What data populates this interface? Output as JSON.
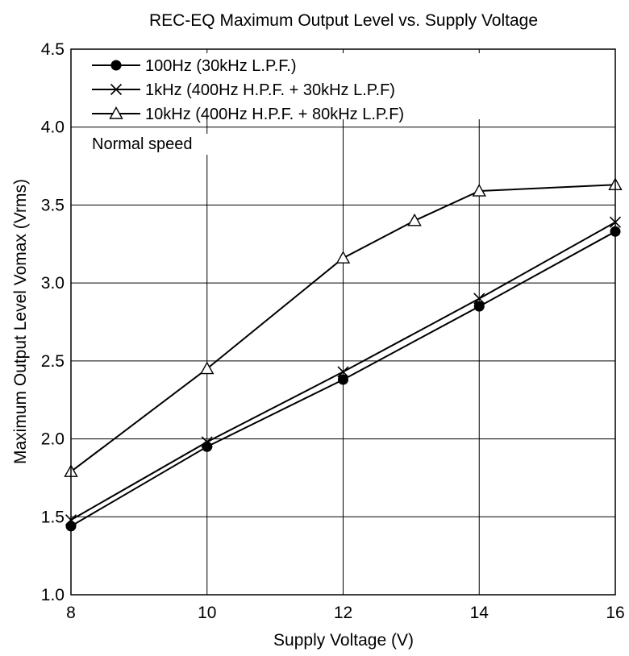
{
  "chart_data": {
    "type": "line",
    "title": "REC-EQ Maximum Output Level vs. Supply Voltage",
    "xlabel": "Supply Voltage  (V)",
    "ylabel": "Maximum Output Level Vomax  (Vrms)",
    "xlim": [
      8,
      16
    ],
    "ylim": [
      1.0,
      4.5
    ],
    "xticks": [
      "8",
      "10",
      "12",
      "14",
      "16"
    ],
    "yticks": [
      "1.0",
      "1.5",
      "2.0",
      "2.5",
      "3.0",
      "3.5",
      "4.0",
      "4.5"
    ],
    "grid": true,
    "legend_position": "top-left",
    "annotation": "Normal speed",
    "series": [
      {
        "name": "100Hz (30kHz L.P.F.)",
        "marker": "filled-circle",
        "x": [
          8,
          10,
          12,
          14,
          16
        ],
        "y": [
          1.44,
          1.95,
          2.38,
          2.85,
          3.33
        ]
      },
      {
        "name": "1kHz (400Hz H.P.F. + 30kHz L.P.F)",
        "marker": "x",
        "x": [
          8,
          10,
          12,
          14,
          16
        ],
        "y": [
          1.48,
          1.98,
          2.43,
          2.9,
          3.39
        ]
      },
      {
        "name": "10kHz (400Hz H.P.F. + 80kHz L.P.F)",
        "marker": "open-triangle",
        "x": [
          8,
          10,
          12,
          13.05,
          14,
          16
        ],
        "y": [
          1.79,
          2.45,
          3.16,
          3.4,
          3.59,
          3.63
        ]
      }
    ]
  }
}
